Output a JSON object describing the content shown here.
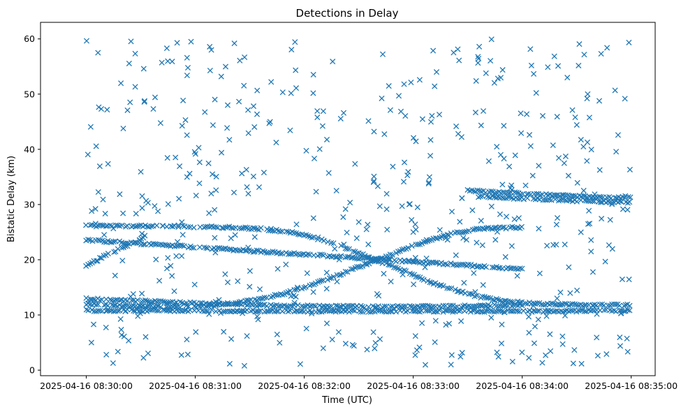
{
  "chart_data": {
    "type": "scatter",
    "title": "Detections in Delay",
    "xlabel": "Time (UTC)",
    "ylabel": "Bistatic Delay (km)",
    "x_tick_labels": [
      "2025-04-16 08:30:00",
      "2025-04-16 08:31:00",
      "2025-04-16 08:32:00",
      "2025-04-16 08:33:00",
      "2025-04-16 08:34:00",
      "2025-04-16 08:35:00"
    ],
    "x_tick_minutes": [
      0,
      1,
      2,
      3,
      4,
      5
    ],
    "y_ticks": [
      0,
      10,
      20,
      30,
      40,
      50,
      60
    ],
    "xlim_minutes": [
      -0.42,
      5.22
    ],
    "ylim": [
      -1,
      63
    ],
    "grid": false,
    "marker": "x",
    "color": "#1f77b4",
    "tracks": [
      {
        "t": [
          0.0,
          0.5,
          1.0,
          1.5,
          2.0,
          2.5,
          3.0,
          3.5,
          4.0
        ],
        "y": [
          23.6,
          22.9,
          22.3,
          21.6,
          21.0,
          20.3,
          19.6,
          19.0,
          18.3
        ]
      },
      {
        "t": [
          0.0,
          0.2,
          0.4,
          0.55
        ],
        "y": [
          19.0,
          21.0,
          22.8,
          24.3
        ]
      },
      {
        "t": [
          0.0,
          0.2,
          0.4,
          0.6,
          0.8,
          1.0,
          1.2,
          1.4,
          1.6,
          1.8,
          2.0,
          2.2,
          2.4,
          2.6,
          2.8,
          3.0,
          3.2,
          3.4,
          3.6,
          3.8,
          4.0
        ],
        "y": [
          12.0,
          11.8,
          11.6,
          11.5,
          11.5,
          11.6,
          11.8,
          12.3,
          12.9,
          13.8,
          15.0,
          16.4,
          17.9,
          19.5,
          21.0,
          22.5,
          23.9,
          24.9,
          25.6,
          25.8,
          25.8
        ]
      },
      {
        "t": [
          0.0,
          0.2,
          0.4,
          0.6,
          0.8,
          1.0,
          1.2,
          1.4,
          1.6,
          1.8,
          2.0,
          2.2,
          2.4,
          2.6,
          2.8,
          3.0,
          3.2,
          3.4,
          3.6,
          3.8,
          4.0,
          4.2,
          4.4,
          4.6,
          4.8,
          5.0
        ],
        "y": [
          26.2,
          26.1,
          26.1,
          26.1,
          26.0,
          26.0,
          25.9,
          25.8,
          25.6,
          25.2,
          24.5,
          23.4,
          22.0,
          20.4,
          18.9,
          17.2,
          15.7,
          14.4,
          13.3,
          12.6,
          12.2,
          12.0,
          11.9,
          11.8,
          11.8,
          11.8
        ]
      },
      {
        "t": [
          0.0,
          0.5,
          1.0,
          1.5,
          2.0,
          2.5,
          3.0,
          3.5,
          4.0
        ],
        "y": [
          12.9,
          12.5,
          12.1,
          11.8,
          11.6,
          11.5,
          11.5,
          11.6,
          11.8
        ]
      },
      {
        "t": [
          0.0,
          0.5,
          1.0,
          1.5,
          2.0,
          2.5,
          3.0,
          3.5,
          4.0,
          4.5,
          5.0
        ],
        "y": [
          10.8,
          10.8,
          10.8,
          10.7,
          10.7,
          10.7,
          10.7,
          10.7,
          10.7,
          10.7,
          10.8
        ]
      },
      {
        "t": [
          3.6,
          3.8,
          4.0,
          4.2,
          4.4,
          4.6,
          4.8,
          5.0
        ],
        "y": [
          31.5,
          31.3,
          31.1,
          30.9,
          30.7,
          30.6,
          30.5,
          30.4
        ]
      },
      {
        "t": [
          3.5,
          3.7,
          3.9,
          4.1,
          4.3,
          4.5,
          4.7,
          4.9,
          5.0
        ],
        "y": [
          32.5,
          32.3,
          32.1,
          31.9,
          31.7,
          31.5,
          31.4,
          31.3,
          31.2
        ]
      }
    ],
    "clutter_count": 520
  }
}
